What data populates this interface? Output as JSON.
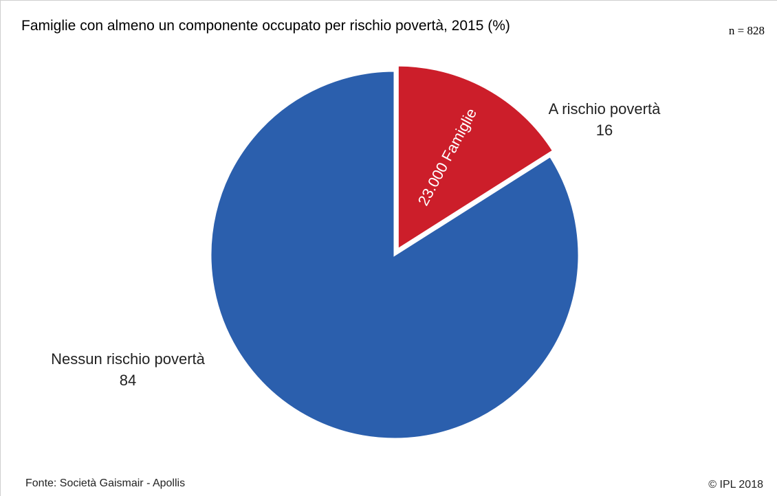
{
  "header": {
    "title": "Famiglie con almeno un componente occupato per rischio povertà, 2015 (%)",
    "sample_size": "n = 828"
  },
  "footer": {
    "source": "Fonte: Società Gaismair - Apollis",
    "copyright": "© IPL 2018"
  },
  "chart_data": {
    "type": "pie",
    "title": "Famiglie con almeno un componente occupato per rischio povertà, 2015 (%)",
    "slices": [
      {
        "label": "A rischio povertà",
        "value": 16,
        "display": "16",
        "color": "#cc1e2a",
        "exploded": true,
        "annotation": "23.000 Famiglie"
      },
      {
        "label": "Nessun rischio povertà",
        "value": 84,
        "display": "84",
        "color": "#2b5fad",
        "exploded": false
      }
    ],
    "start_angle_deg": 0,
    "direction": "clockwise",
    "legend": "none"
  }
}
